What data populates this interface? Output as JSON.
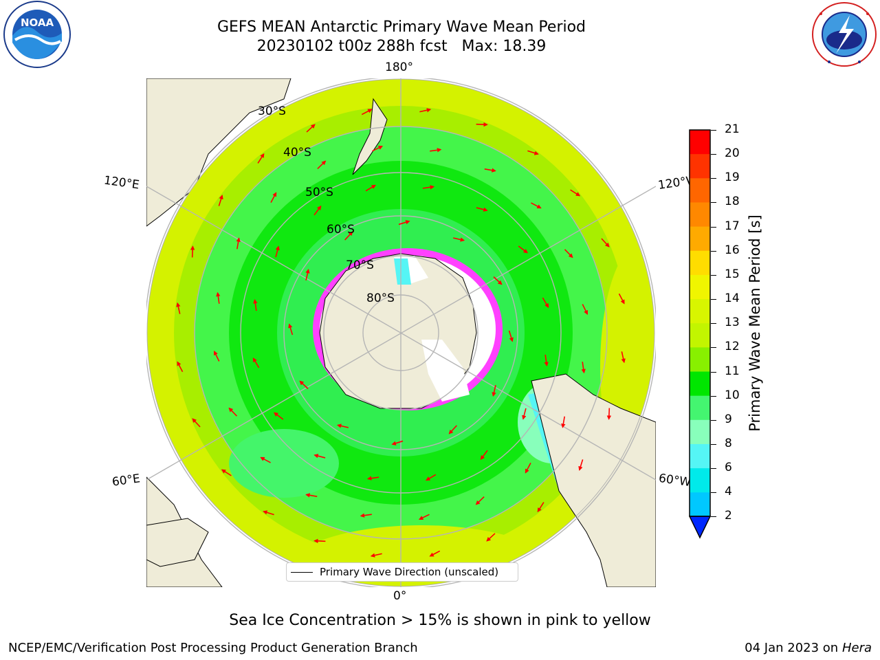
{
  "title": {
    "line1": "GEFS MEAN Antarctic Primary Wave Mean Period",
    "line2": "20230102 t00z 288h fcst   Max: 18.39"
  },
  "logos": {
    "left": {
      "icon": "noaa-logo",
      "text": "NOAA",
      "ring": "NATIONAL OCEANIC AND ATMOSPHERIC ADMINISTRATION · U.S. DEPARTMENT OF COMMERCE"
    },
    "right": {
      "icon": "nws-logo",
      "ring": "NATIONAL WEATHER SERVICE"
    }
  },
  "map": {
    "projection": "south-polar-stereographic",
    "lon_labels": {
      "top": "180°",
      "bottom": "0°",
      "left_upper": "120°E",
      "left_lower": "60°E",
      "right_upper": "120°W",
      "right_lower": "60°W"
    },
    "lat_labels": [
      "30°S",
      "40°S",
      "50°S",
      "60°S",
      "70°S",
      "80°S"
    ],
    "legend": "Primary Wave Direction (unscaled)",
    "arrow_color": "#ff0000"
  },
  "colorbar": {
    "label": "Primary Wave Mean Period [s]",
    "ticks": [
      "21",
      "20",
      "19",
      "18",
      "17",
      "16",
      "15",
      "14",
      "13",
      "12",
      "11",
      "10",
      "9",
      "8",
      "6",
      "4",
      "2"
    ],
    "colors": [
      "#ff0000",
      "#ff3300",
      "#ff6600",
      "#ff8800",
      "#ffaa00",
      "#ffdd00",
      "#f0f500",
      "#d8f500",
      "#c2f500",
      "#88f000",
      "#00e600",
      "#44f570",
      "#88ffbb",
      "#55f5f5",
      "#00eaea",
      "#00c8ff",
      "#0078ff",
      "#0028ff"
    ]
  },
  "caption": "Sea Ice Concentration > 15% is shown in pink to yellow",
  "footer": {
    "left": "NCEP/EMC/Verification Post Processing Product Generation Branch",
    "right_date": "04 Jan 2023 on ",
    "right_host": "Hera"
  }
}
